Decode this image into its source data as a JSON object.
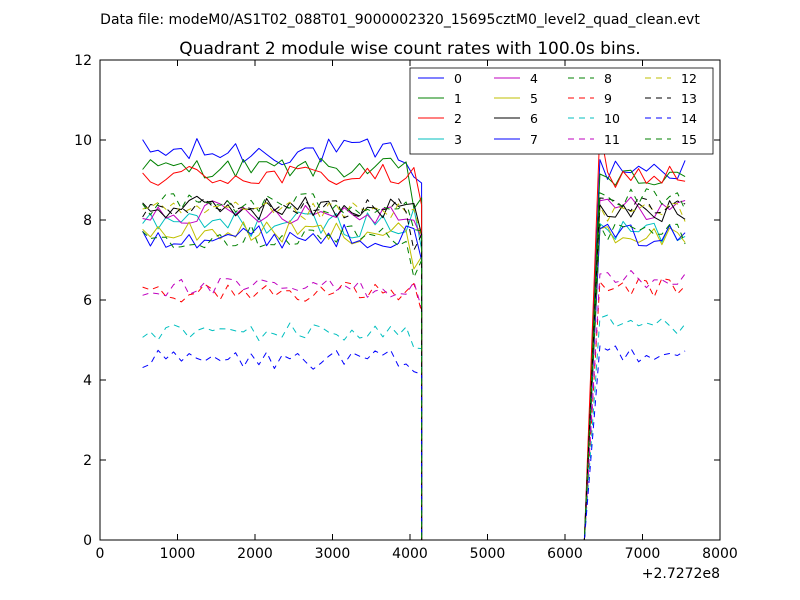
{
  "chart_data": {
    "type": "line",
    "suptitle": "Data file: modeM0/AS1T02_088T01_9000002320_15695cztM0_level2_quad_clean.evt",
    "title": "Quadrant 2 module wise count rates with 100.0s bins.",
    "xlabel": "",
    "ylabel": "",
    "xlim": [
      0,
      8000
    ],
    "ylim": [
      0,
      12
    ],
    "xticks": [
      "0",
      "1000",
      "2000",
      "3000",
      "4000",
      "5000",
      "6000",
      "7000",
      "8000"
    ],
    "yticks": [
      "0",
      "2",
      "4",
      "6",
      "8",
      "10",
      "12"
    ],
    "x_offset_label": "+2.7272e8",
    "grid": false,
    "legend_position": "top-right",
    "segments": [
      {
        "x_start": 550,
        "x_end": 4150,
        "step": 100,
        "points": 37
      },
      {
        "x_start": 6250,
        "x_end": 7550,
        "step": 100,
        "points": 14
      }
    ],
    "gap_value": 0,
    "series": [
      {
        "name": "0",
        "color": "#0000ff",
        "style": "solid",
        "mean1": 9.7,
        "mean2": 9.3,
        "amp": 0.35
      },
      {
        "name": "1",
        "color": "#008000",
        "style": "solid",
        "mean1": 9.3,
        "mean2": 9.0,
        "amp": 0.25
      },
      {
        "name": "2",
        "color": "#ff0000",
        "style": "solid",
        "mean1": 9.1,
        "mean2": 9.1,
        "amp": 0.3
      },
      {
        "name": "3",
        "color": "#00bfbf",
        "style": "solid",
        "mean1": 7.9,
        "mean2": 7.7,
        "amp": 0.35
      },
      {
        "name": "4",
        "color": "#bf00bf",
        "style": "solid",
        "mean1": 8.2,
        "mean2": 8.3,
        "amp": 0.3
      },
      {
        "name": "5",
        "color": "#bfbf00",
        "style": "solid",
        "mean1": 7.7,
        "mean2": 7.6,
        "amp": 0.3
      },
      {
        "name": "6",
        "color": "#000000",
        "style": "solid",
        "mean1": 8.3,
        "mean2": 8.2,
        "amp": 0.3
      },
      {
        "name": "7",
        "color": "#0000ff",
        "style": "solid",
        "mean1": 7.6,
        "mean2": 7.6,
        "amp": 0.3
      },
      {
        "name": "8",
        "color": "#008000",
        "style": "dashed",
        "mean1": 7.6,
        "mean2": 7.7,
        "amp": 0.3
      },
      {
        "name": "9",
        "color": "#ff0000",
        "style": "dashed",
        "mean1": 6.2,
        "mean2": 6.3,
        "amp": 0.25
      },
      {
        "name": "10",
        "color": "#00bfbf",
        "style": "dashed",
        "mean1": 5.2,
        "mean2": 5.4,
        "amp": 0.25
      },
      {
        "name": "11",
        "color": "#bf00bf",
        "style": "dashed",
        "mean1": 6.3,
        "mean2": 6.5,
        "amp": 0.25
      },
      {
        "name": "12",
        "color": "#bfbf00",
        "style": "dashed",
        "mean1": 8.2,
        "mean2": 8.2,
        "amp": 0.25
      },
      {
        "name": "13",
        "color": "#000000",
        "style": "dashed",
        "mean1": 8.3,
        "mean2": 8.4,
        "amp": 0.25
      },
      {
        "name": "14",
        "color": "#0000ff",
        "style": "dashed",
        "mean1": 4.5,
        "mean2": 4.7,
        "amp": 0.25
      },
      {
        "name": "15",
        "color": "#008000",
        "style": "dashed",
        "mean1": 8.4,
        "mean2": 8.5,
        "amp": 0.3
      }
    ]
  }
}
